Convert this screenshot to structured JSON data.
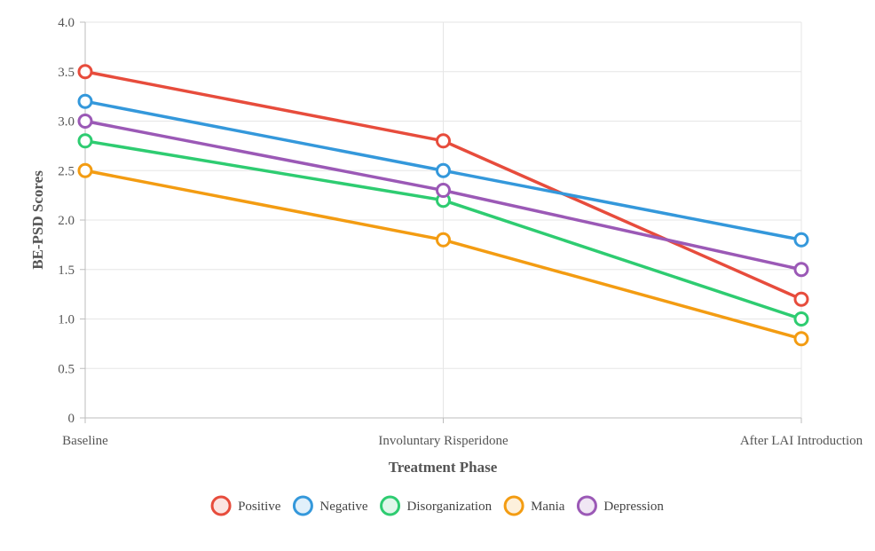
{
  "chart_data": {
    "type": "line",
    "categories": [
      "Baseline",
      "Involuntary Risperidone",
      "After LAI Introduction"
    ],
    "series": [
      {
        "name": "Positive",
        "values": [
          3.5,
          2.8,
          1.2
        ],
        "color": "#e74c3c"
      },
      {
        "name": "Negative",
        "values": [
          3.2,
          2.5,
          1.8
        ],
        "color": "#3498db"
      },
      {
        "name": "Disorganization",
        "values": [
          2.8,
          2.2,
          1.0
        ],
        "color": "#2ecc71"
      },
      {
        "name": "Mania",
        "values": [
          2.5,
          1.8,
          0.8
        ],
        "color": "#f39c12"
      },
      {
        "name": "Depression",
        "values": [
          3.0,
          2.3,
          1.5
        ],
        "color": "#9b59b6"
      }
    ],
    "xlabel": "Treatment Phase",
    "ylabel": "BE-PSD Scores",
    "ylim": [
      0,
      4.0
    ],
    "yticks": [
      "0",
      "0.5",
      "1.0",
      "1.5",
      "2.0",
      "2.5",
      "3.0",
      "3.5",
      "4.0"
    ],
    "grid": true,
    "legend_position": "bottom"
  }
}
